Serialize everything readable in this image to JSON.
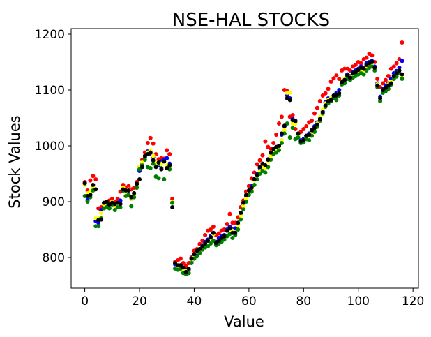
{
  "chart_data": {
    "type": "scatter",
    "title": "NSE-HAL STOCKS",
    "xlabel": "Value",
    "ylabel": "Stock Values",
    "xlim": [
      -5,
      122
    ],
    "ylim": [
      745,
      1210
    ],
    "xticks": [
      0,
      20,
      40,
      60,
      80,
      100,
      120
    ],
    "yticks": [
      800,
      900,
      1000,
      1100,
      1200
    ],
    "grid": false,
    "legend": "none",
    "series": [
      {
        "color": "#ff0000",
        "values": [
          935,
          920,
          938,
          946,
          940,
          888,
          890,
          895,
          900,
          902,
          905,
          900,
          905,
          918,
          930,
          925,
          928,
          922,
          925,
          935,
          962,
          975,
          988,
          1005,
          1014,
          1004,
          985,
          976,
          978,
          977,
          992,
          985,
          905,
          792,
          795,
          798,
          790,
          785,
          790,
          800,
          812,
          815,
          824,
          830,
          840,
          848,
          850,
          855,
          840,
          843,
          848,
          850,
          860,
          878,
          862,
          862,
          872,
          890,
          902,
          918,
          928,
          942,
          952,
          967,
          974,
          983,
          1008,
          998,
          995,
          1005,
          1020,
          1040,
          1052,
          1100,
          1098,
          1052,
          1055,
          1030,
          1020,
          1025,
          1030,
          1035,
          1042,
          1045,
          1058,
          1068,
          1080,
          1090,
          1094,
          1102,
          1115,
          1121,
          1126,
          1120,
          1135,
          1138,
          1138,
          1135,
          1142,
          1145,
          1150,
          1148,
          1155,
          1158,
          1165,
          1162,
          1150,
          1120,
          1105,
          1112,
          1118,
          1125,
          1138,
          1142,
          1148,
          1155,
          1185
        ]
      },
      {
        "color": "#0000ff",
        "values": [
          932,
          903,
          912,
          922,
          865,
          862,
          885,
          890,
          895,
          895,
          900,
          896,
          898,
          902,
          920,
          918,
          920,
          905,
          915,
          930,
          955,
          968,
          980,
          990,
          986,
          980,
          968,
          966,
          972,
          975,
          978,
          968,
          898,
          788,
          785,
          786,
          780,
          778,
          778,
          792,
          805,
          808,
          815,
          822,
          828,
          832,
          838,
          842,
          828,
          835,
          838,
          840,
          850,
          855,
          850,
          852,
          860,
          878,
          895,
          910,
          920,
          928,
          940,
          950,
          960,
          965,
          962,
          976,
          985,
          990,
          995,
          1000,
          1020,
          1035,
          1090,
          1085,
          1048,
          1045,
          1020,
          1010,
          1012,
          1018,
          1022,
          1028,
          1035,
          1042,
          1050,
          1062,
          1078,
          1085,
          1080,
          1090,
          1095,
          1100,
          1112,
          1118,
          1128,
          1125,
          1132,
          1135,
          1138,
          1142,
          1140,
          1148,
          1150,
          1152,
          1142,
          1112,
          1088,
          1102,
          1108,
          1112,
          1120,
          1130,
          1134,
          1140,
          1152
        ]
      },
      {
        "color": "#ffff00",
        "values": [
          930,
          915,
          918,
          925,
          870,
          870,
          880,
          895,
          898,
          896,
          900,
          892,
          898,
          896,
          925,
          918,
          922,
          905,
          912,
          928,
          962,
          970,
          982,
          988,
          992,
          982,
          970,
          968,
          968,
          972,
          965,
          962,
          900,
          790,
          782,
          784,
          778,
          776,
          774,
          796,
          800,
          810,
          812,
          820,
          825,
          830,
          835,
          842,
          824,
          828,
          832,
          835,
          848,
          852,
          848,
          846,
          858,
          875,
          892,
          905,
          916,
          922,
          938,
          948,
          955,
          962,
          960,
          972,
          982,
          990,
          992,
          996,
          1010,
          1028,
          1095,
          1095,
          1040,
          1040,
          1018,
          1008,
          1010,
          1016,
          1018,
          1025,
          1030,
          1040,
          1052,
          1065,
          1076,
          1082,
          1085,
          1090,
          1088,
          1095,
          1115,
          1120,
          1125,
          1124,
          1128,
          1130,
          1132,
          1135,
          1135,
          1140,
          1145,
          1148,
          1140,
          1110,
          1085,
          1100,
          1102,
          1110,
          1115,
          1125,
          1130,
          1135,
          1122
        ]
      },
      {
        "color": "#008000",
        "values": [
          910,
          900,
          908,
          920,
          856,
          856,
          870,
          888,
          890,
          888,
          895,
          885,
          890,
          890,
          920,
          910,
          912,
          892,
          908,
          925,
          958,
          965,
          975,
          962,
          960,
          968,
          945,
          942,
          960,
          940,
          960,
          958,
          898,
          780,
          778,
          780,
          772,
          770,
          772,
          790,
          798,
          802,
          808,
          814,
          818,
          820,
          825,
          830,
          822,
          825,
          828,
          832,
          838,
          842,
          835,
          840,
          850,
          868,
          886,
          900,
          912,
          918,
          930,
          940,
          950,
          955,
          952,
          962,
          975,
          985,
          988,
          992,
          1005,
          1022,
          1040,
          1015,
          1032,
          1012,
          1015,
          1005,
          1006,
          1012,
          1010,
          1018,
          1025,
          1034,
          1045,
          1058,
          1070,
          1076,
          1080,
          1086,
          1082,
          1090,
          1110,
          1112,
          1120,
          1118,
          1122,
          1125,
          1128,
          1130,
          1128,
          1135,
          1140,
          1142,
          1135,
          1105,
          1080,
          1095,
          1098,
          1102,
          1110,
          1120,
          1124,
          1130,
          1120
        ]
      },
      {
        "color": "#000000",
        "values": [
          933,
          910,
          912,
          930,
          922,
          867,
          868,
          898,
          900,
          895,
          898,
          896,
          898,
          896,
          922,
          920,
          920,
          908,
          915,
          932,
          940,
          962,
          982,
          985,
          988,
          974,
          962,
          970,
          958,
          972,
          960,
          965,
          890,
          790,
          786,
          786,
          782,
          774,
          780,
          798,
          806,
          812,
          815,
          820,
          825,
          830,
          836,
          844,
          826,
          830,
          835,
          838,
          848,
          852,
          844,
          844,
          862,
          880,
          898,
          912,
          920,
          925,
          940,
          948,
          962,
          968,
          965,
          975,
          988,
          994,
          998,
          1000,
          1022,
          1036,
          1085,
          1082,
          1046,
          1044,
          1022,
          1008,
          1010,
          1018,
          1020,
          1028,
          1032,
          1038,
          1048,
          1060,
          1072,
          1080,
          1082,
          1090,
          1090,
          1094,
          1114,
          1118,
          1126,
          1122,
          1130,
          1132,
          1136,
          1140,
          1138,
          1145,
          1148,
          1150,
          1140,
          1108,
          1085,
          1100,
          1104,
          1108,
          1112,
          1125,
          1130,
          1135,
          1128
        ]
      }
    ]
  }
}
